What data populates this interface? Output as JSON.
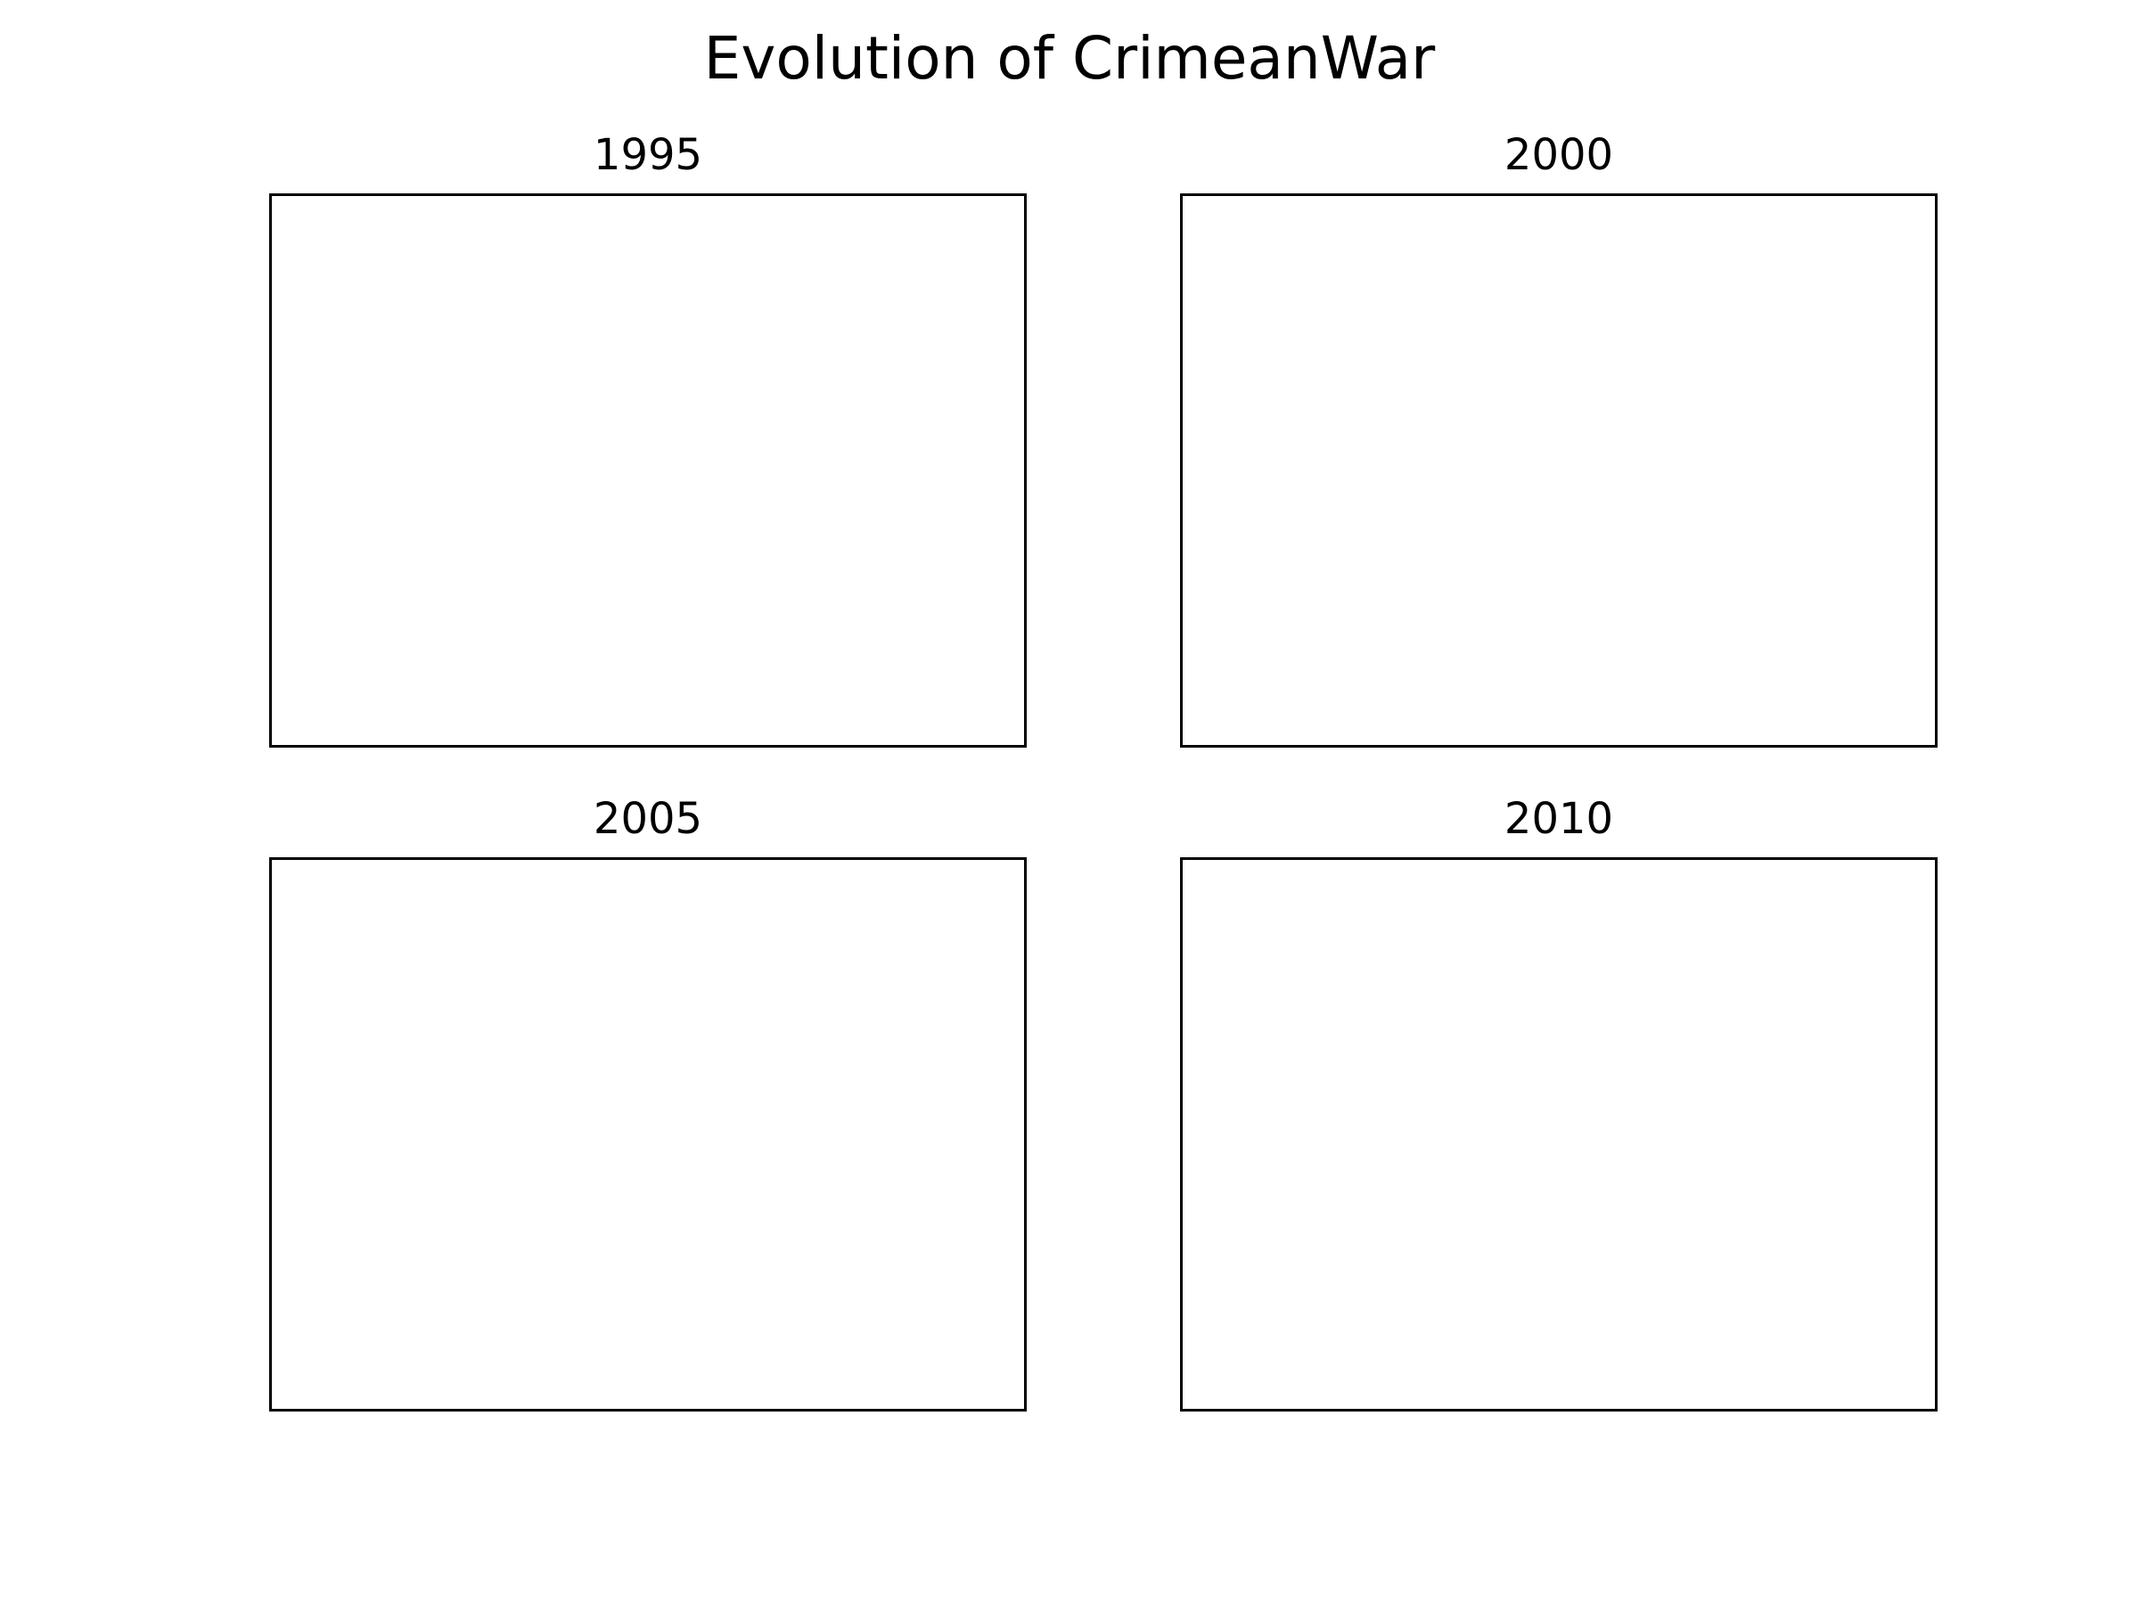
{
  "chart_data": {
    "type": "scatter",
    "title": "Evolution of CrimeanWar",
    "layout": "2x2 grid of subplots",
    "subplots": [
      {
        "title": "1995",
        "series": [],
        "grid": false,
        "ticks": false
      },
      {
        "title": "2000",
        "series": [],
        "grid": false,
        "ticks": false
      },
      {
        "title": "2005",
        "series": [],
        "grid": false,
        "ticks": false
      },
      {
        "title": "2010",
        "series": [],
        "grid": false,
        "ticks": false
      }
    ]
  },
  "colors": {
    "axes_frame": "#000000",
    "background": "#ffffff"
  }
}
